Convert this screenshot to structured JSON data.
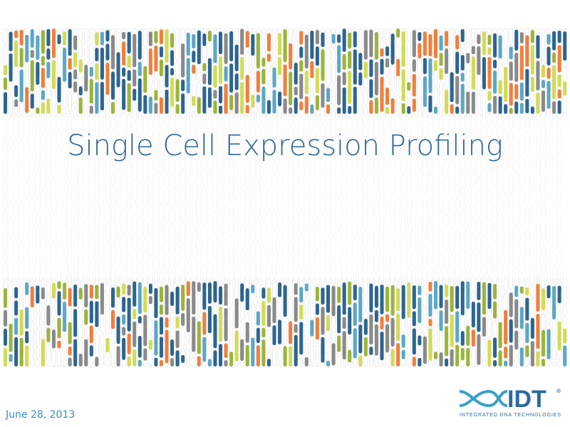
{
  "slide": {
    "title": "Single Cell Expression Profiling",
    "date": "June 28, 2013"
  },
  "logo": {
    "name": "IDT",
    "mark": "®",
    "tagline": "INTEGRATED DNA TECHNOLOGIES"
  }
}
